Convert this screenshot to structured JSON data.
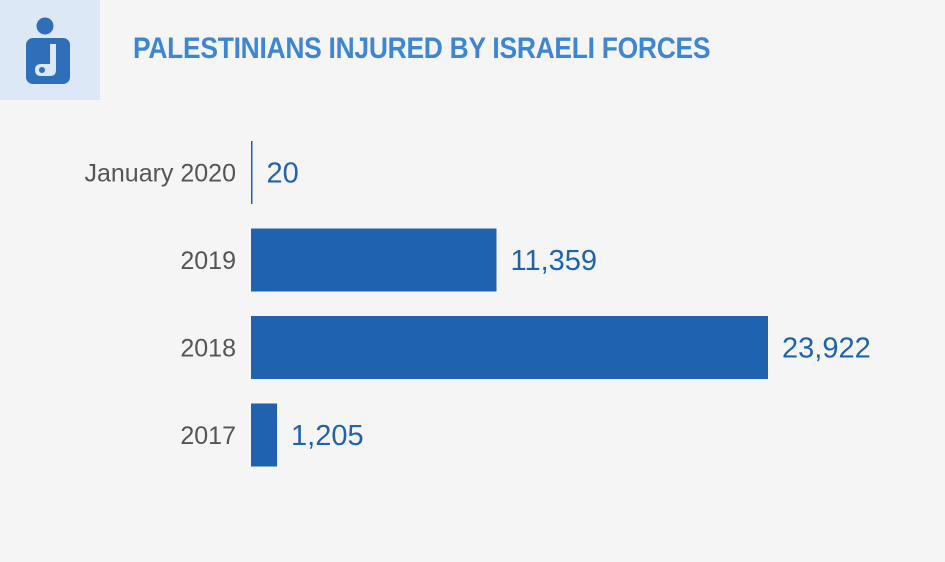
{
  "header": {
    "title": "PALESTINIANS INJURED BY ISRAELI FORCES",
    "icon": "injured-person-icon"
  },
  "colors": {
    "bar": "#1f62ae",
    "title": "#3f86d2",
    "icon_bg": "#dce8f5",
    "background": "#f5f5f5"
  },
  "chart_data": {
    "type": "bar",
    "orientation": "horizontal",
    "title": "PALESTINIANS INJURED BY ISRAELI FORCES",
    "categories": [
      "January 2020",
      "2019",
      "2018",
      "2017"
    ],
    "values": [
      20,
      11359,
      23922,
      1205
    ],
    "value_labels": [
      "20",
      "11,359",
      "23,922",
      "1,205"
    ],
    "xlabel": "",
    "ylabel": "",
    "xlim": [
      0,
      23922
    ],
    "grid": false,
    "legend": "none"
  }
}
